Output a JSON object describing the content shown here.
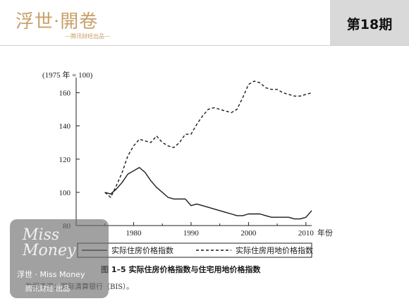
{
  "header": {
    "brand_title": "浮世·開卷",
    "brand_subtitle": "—腾讯财经出品—",
    "issue": "第18期"
  },
  "colors": {
    "brand": "#c8a06a",
    "issue_box": "#d9d9d9"
  },
  "chart_data": {
    "type": "line",
    "title": "",
    "unit_label": "(1975 年 = 100)",
    "xlabel": "年份",
    "ylabel": "",
    "xlim": [
      1970,
      2011
    ],
    "ylim": [
      80,
      170
    ],
    "x_ticks": [
      "1980",
      "1990",
      "2000",
      "2010"
    ],
    "x_tick_values": [
      1980,
      1990,
      2000,
      2010
    ],
    "y_ticks": [
      "80",
      "100",
      "120",
      "140",
      "160"
    ],
    "y_tick_values": [
      80,
      100,
      120,
      140,
      160
    ],
    "grid": false,
    "legend_placement": "bottom",
    "series": [
      {
        "name": "实际住房价格指数",
        "style": "solid",
        "x": [
          1975,
          1976,
          1977,
          1978,
          1979,
          1980,
          1981,
          1982,
          1983,
          1984,
          1985,
          1986,
          1987,
          1988,
          1989,
          1990,
          1991,
          1992,
          1993,
          1994,
          1995,
          1996,
          1997,
          1998,
          1999,
          2000,
          2001,
          2002,
          2003,
          2004,
          2005,
          2006,
          2007,
          2008,
          2009,
          2010,
          2011
        ],
        "y": [
          100,
          99,
          102,
          106,
          111,
          113,
          115,
          112,
          107,
          103,
          100,
          97,
          96,
          96,
          96,
          92,
          93,
          92,
          91,
          90,
          89,
          88,
          87,
          86,
          86,
          87,
          87,
          87,
          86,
          85,
          85,
          85,
          85,
          84,
          84,
          85,
          89
        ]
      },
      {
        "name": "实际住房用地价格指数",
        "style": "dashed",
        "x": [
          1975,
          1976,
          1977,
          1978,
          1979,
          1980,
          1981,
          1982,
          1983,
          1984,
          1985,
          1986,
          1987,
          1988,
          1989,
          1990,
          1991,
          1992,
          1993,
          1994,
          1995,
          1996,
          1997,
          1998,
          1999,
          2000,
          2001,
          2002,
          2003,
          2004,
          2005,
          2006,
          2007,
          2008,
          2009,
          2010,
          2011
        ],
        "y": [
          100,
          97,
          104,
          112,
          122,
          128,
          132,
          131,
          130,
          134,
          130,
          128,
          127,
          130,
          135,
          135,
          141,
          146,
          150,
          151,
          150,
          149,
          148,
          150,
          157,
          165,
          167,
          166,
          163,
          162,
          162,
          160,
          159,
          158,
          158,
          159,
          160
        ]
      }
    ]
  },
  "caption": "图 1–5   实际住房价格指数与住宅用地价格指数",
  "source": "数据来源：国际清算银行（BIS）。",
  "watermark": {
    "script": "Miss Money",
    "line1": "浮世 · Miss Money",
    "line2": "腾讯财经 出品"
  }
}
